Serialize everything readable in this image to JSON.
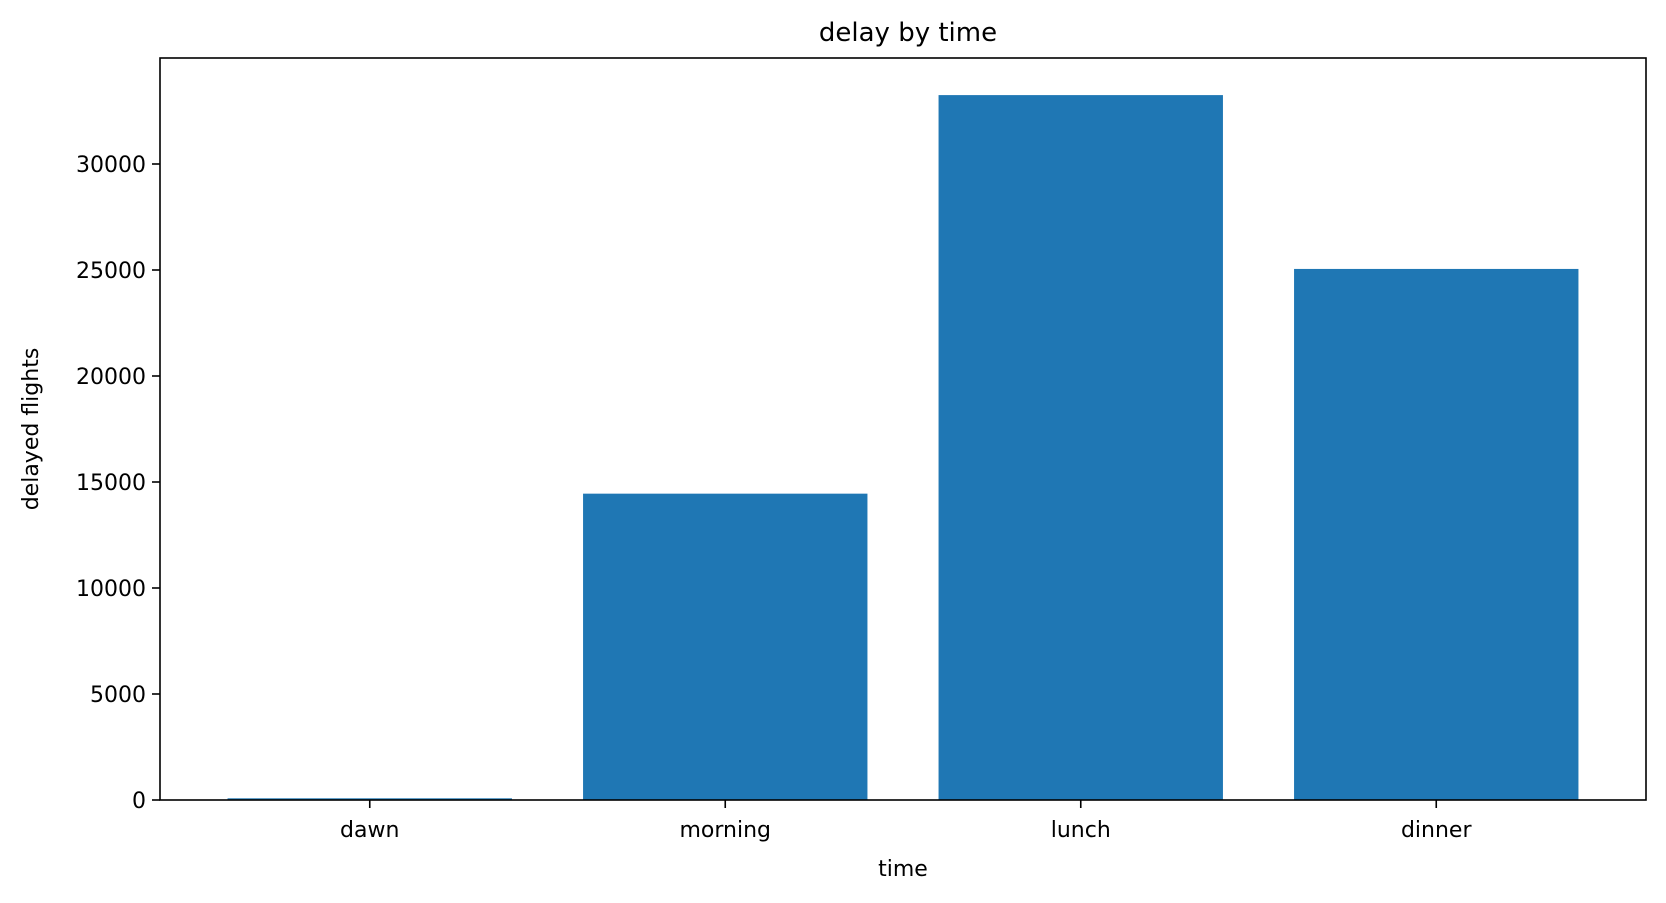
{
  "chart_data": {
    "type": "bar",
    "title": "delay by time",
    "xlabel": "time",
    "ylabel": "delayed flights",
    "categories": [
      "dawn",
      "morning",
      "lunch",
      "dinner"
    ],
    "values": [
      80,
      14450,
      33250,
      25050
    ],
    "ylim": [
      0,
      35000
    ],
    "yticks": [
      0,
      5000,
      10000,
      15000,
      20000,
      25000,
      30000
    ],
    "ytick_labels": [
      "0",
      "5000",
      "10000",
      "15000",
      "20000",
      "25000",
      "30000"
    ],
    "grid": false,
    "legend": "none",
    "bar_color": "#1f77b4"
  }
}
